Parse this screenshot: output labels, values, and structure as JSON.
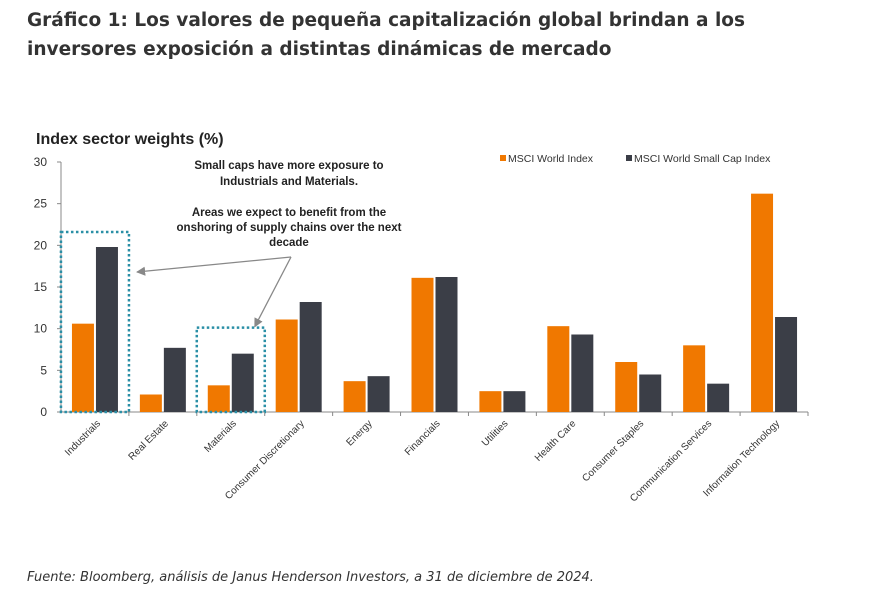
{
  "page": {
    "heading": "Gráfico 1: Los valores de pequeña capitalización global brindan a los inversores exposición a distintas dinámicas de mercado",
    "source": "Fuente: Bloomberg, análisis de Janus Henderson Investors, a 31 de diciembre de 2024."
  },
  "chart_data": {
    "type": "bar",
    "title": "Index sector weights (%)",
    "xlabel": "",
    "ylabel": "",
    "ylim": [
      0,
      30
    ],
    "yticks": [
      0,
      5,
      10,
      15,
      20,
      25,
      30
    ],
    "grid": false,
    "legend_position": "top-right",
    "categories": [
      "Industrials",
      "Real Estate",
      "Materials",
      "Consumer Discretionary",
      "Energy",
      "Financials",
      "Utilities",
      "Health Care",
      "Consumer Staples",
      "Communication Services",
      "Information Technology"
    ],
    "series": [
      {
        "name": "MSCI World Index",
        "color": "#f07800",
        "values": [
          10.6,
          2.1,
          3.2,
          11.1,
          3.7,
          16.1,
          2.5,
          10.3,
          6.0,
          8.0,
          26.2
        ]
      },
      {
        "name": "MSCI World Small Cap Index",
        "color": "#3b3e47",
        "values": [
          19.8,
          7.7,
          7.0,
          13.2,
          4.3,
          16.2,
          2.5,
          9.3,
          4.5,
          3.4,
          11.4
        ]
      }
    ],
    "highlight_categories": [
      "Industrials",
      "Materials"
    ],
    "highlight_color": "#2a8fa6",
    "annotations": [
      {
        "text": [
          "Small caps have more exposure to",
          "Industrials and Materials."
        ]
      },
      {
        "text": [
          "Areas we expect to benefit from the",
          "onshoring of supply chains over the next",
          "decade"
        ]
      }
    ]
  }
}
